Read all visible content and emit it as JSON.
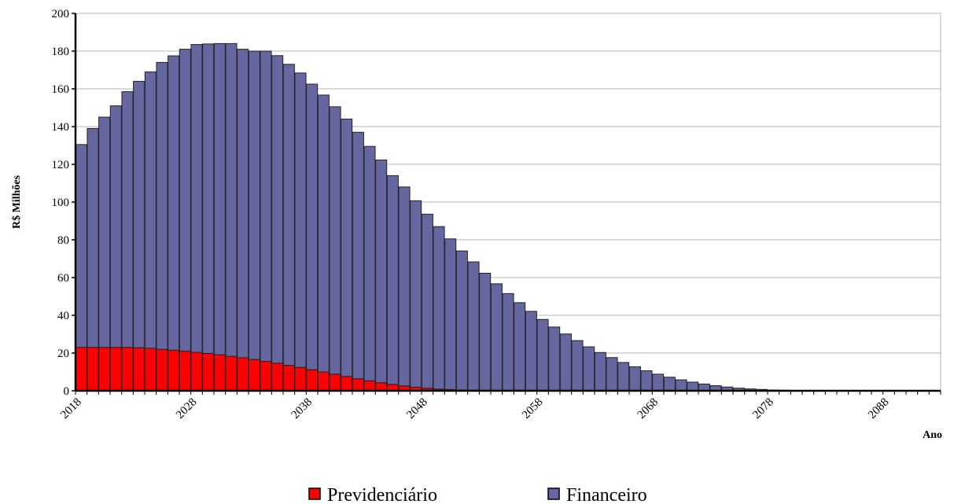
{
  "chart_data": {
    "type": "bar",
    "stacked": true,
    "xlabel": "Ano",
    "ylabel": "R$ Milhões",
    "ylim": [
      0,
      200
    ],
    "yticks": [
      0,
      20,
      40,
      60,
      80,
      100,
      120,
      140,
      160,
      180,
      200
    ],
    "x_start": 2018,
    "xticks": [
      "2018",
      "2028",
      "2038",
      "2048",
      "2058",
      "2068",
      "2078",
      "2088"
    ],
    "grid": true,
    "legend_position": "bottom",
    "colors": {
      "Previdenciário": "#ff0000",
      "Financeiro": "#6666a0",
      "edge": "#222222",
      "grid": "#b4b4b4"
    },
    "series": [
      {
        "name": "Previdenciário",
        "values": [
          23,
          23,
          23,
          23,
          23,
          22.8,
          22.5,
          22,
          21.5,
          21,
          20.4,
          19.8,
          19.1,
          18.3,
          17.5,
          16.6,
          15.6,
          14.6,
          13.5,
          12.4,
          11.2,
          10,
          8.8,
          7.6,
          6.4,
          5.3,
          4.3,
          3.4,
          2.6,
          1.9,
          1.3,
          0.9,
          0.6,
          0.4,
          0.2,
          0.1,
          0.1,
          0,
          0,
          0,
          0,
          0,
          0,
          0,
          0,
          0,
          0,
          0,
          0,
          0,
          0,
          0,
          0,
          0,
          0,
          0,
          0,
          0,
          0,
          0,
          0,
          0,
          0,
          0,
          0,
          0,
          0,
          0,
          0,
          0,
          0,
          0,
          0,
          0,
          0
        ]
      },
      {
        "name": "Financeiro",
        "values": [
          107.5,
          116,
          122,
          128,
          135.5,
          141.2,
          146.5,
          152,
          156,
          160,
          163.1,
          164,
          164.9,
          165.7,
          163.5,
          163.4,
          164.4,
          163,
          159.5,
          156,
          151.3,
          146.7,
          141.7,
          136.4,
          130.6,
          124.2,
          118,
          110.6,
          105.4,
          98.8,
          92.3,
          86.1,
          79.9,
          73.7,
          68.1,
          62.2,
          56.6,
          51.5,
          46.7,
          42.1,
          37.8,
          33.8,
          30.1,
          26.6,
          23.3,
          20.3,
          17.6,
          15,
          12.7,
          10.6,
          8.8,
          7.2,
          5.8,
          4.6,
          3.6,
          2.7,
          2,
          1.4,
          1,
          0.7,
          0.4,
          0.3,
          0.2,
          0.1,
          0.1,
          0.1,
          0,
          0,
          0,
          0,
          0,
          0,
          0,
          0,
          0
        ]
      }
    ]
  }
}
